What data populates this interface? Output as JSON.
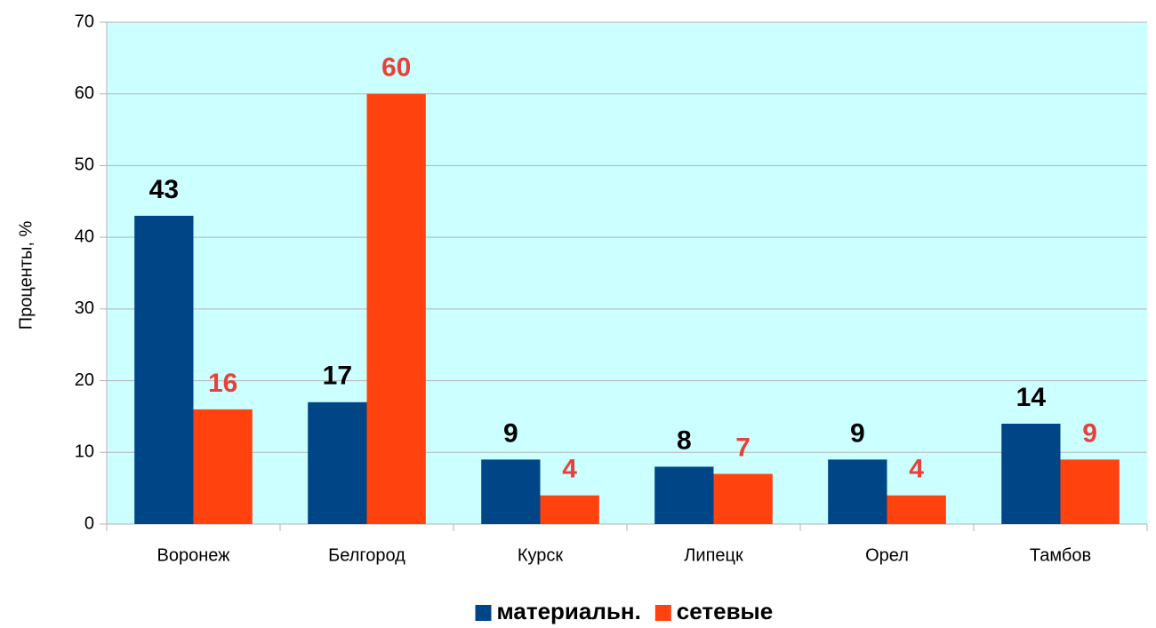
{
  "chart_data": {
    "type": "bar",
    "y_label": "Проценты, %",
    "categories": [
      "Воронеж",
      "Белгород",
      "Курск",
      "Липецк",
      "Орел",
      "Тамбов"
    ],
    "series": [
      {
        "name": "материальн.",
        "color": "#004586",
        "label_color": "#000000",
        "values": [
          43,
          17,
          9,
          8,
          9,
          14
        ]
      },
      {
        "name": "сетевые",
        "color": "#ff420e",
        "label_color": "#e8413b",
        "values": [
          16,
          60,
          4,
          7,
          4,
          9
        ]
      }
    ],
    "ylim": [
      0,
      70
    ],
    "yticks": [
      0,
      10,
      20,
      30,
      40,
      50,
      60,
      70
    ],
    "grid": true,
    "plot_background": "#ccffff",
    "legend": "bottom"
  }
}
